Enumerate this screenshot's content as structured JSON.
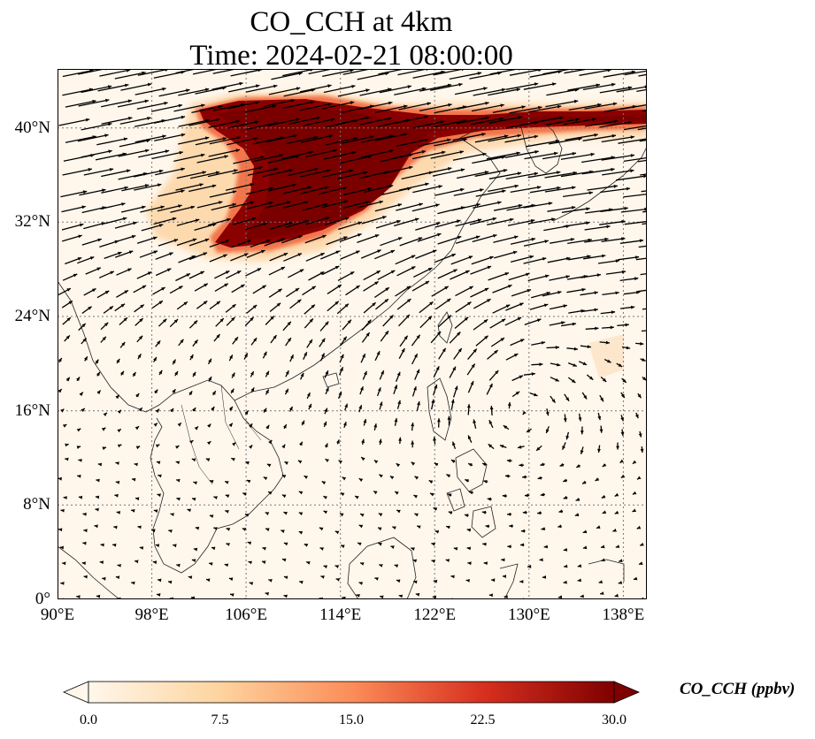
{
  "title": {
    "line1": "CO_CCH at 4km",
    "line2": "Time: 2024-02-21 08:00:00"
  },
  "map": {
    "projection": "PlateCarree",
    "lon_range": [
      90,
      140
    ],
    "lat_range": [
      0,
      45
    ],
    "gridlines": "dotted",
    "x_ticks": [
      {
        "value": 90,
        "label": "90°E"
      },
      {
        "value": 98,
        "label": "98°E"
      },
      {
        "value": 106,
        "label": "106°E"
      },
      {
        "value": 114,
        "label": "114°E"
      },
      {
        "value": 122,
        "label": "122°E"
      },
      {
        "value": 130,
        "label": "130°E"
      },
      {
        "value": 138,
        "label": "138°E"
      }
    ],
    "y_ticks": [
      {
        "value": 0,
        "label": "0°"
      },
      {
        "value": 8,
        "label": "8°N"
      },
      {
        "value": 16,
        "label": "16°N"
      },
      {
        "value": 24,
        "label": "24°N"
      },
      {
        "value": 32,
        "label": "32°N"
      },
      {
        "value": 40,
        "label": "40°N"
      }
    ],
    "field": "CO_CCH",
    "level": "4km",
    "overlay": "wind vectors (quiver)",
    "plume_description": "high CO_CCH band over northern China (approx. 30–42°N, 103–140°E), anticyclonic circulation near 22°N 128°E"
  },
  "colorbar": {
    "label": "CO_CCH (ppbv)",
    "cmap": "OrRd",
    "min": 0.0,
    "max": 30.0,
    "extend": "both",
    "ticks": [
      {
        "value": 0.0,
        "label": "0.0"
      },
      {
        "value": 7.5,
        "label": "7.5"
      },
      {
        "value": 15.0,
        "label": "15.0"
      },
      {
        "value": 22.5,
        "label": "22.5"
      },
      {
        "value": 30.0,
        "label": "30.0"
      }
    ],
    "colors": [
      "#fff7ec",
      "#fdd49e",
      "#fc8d59",
      "#d7301f",
      "#7f0000"
    ]
  }
}
